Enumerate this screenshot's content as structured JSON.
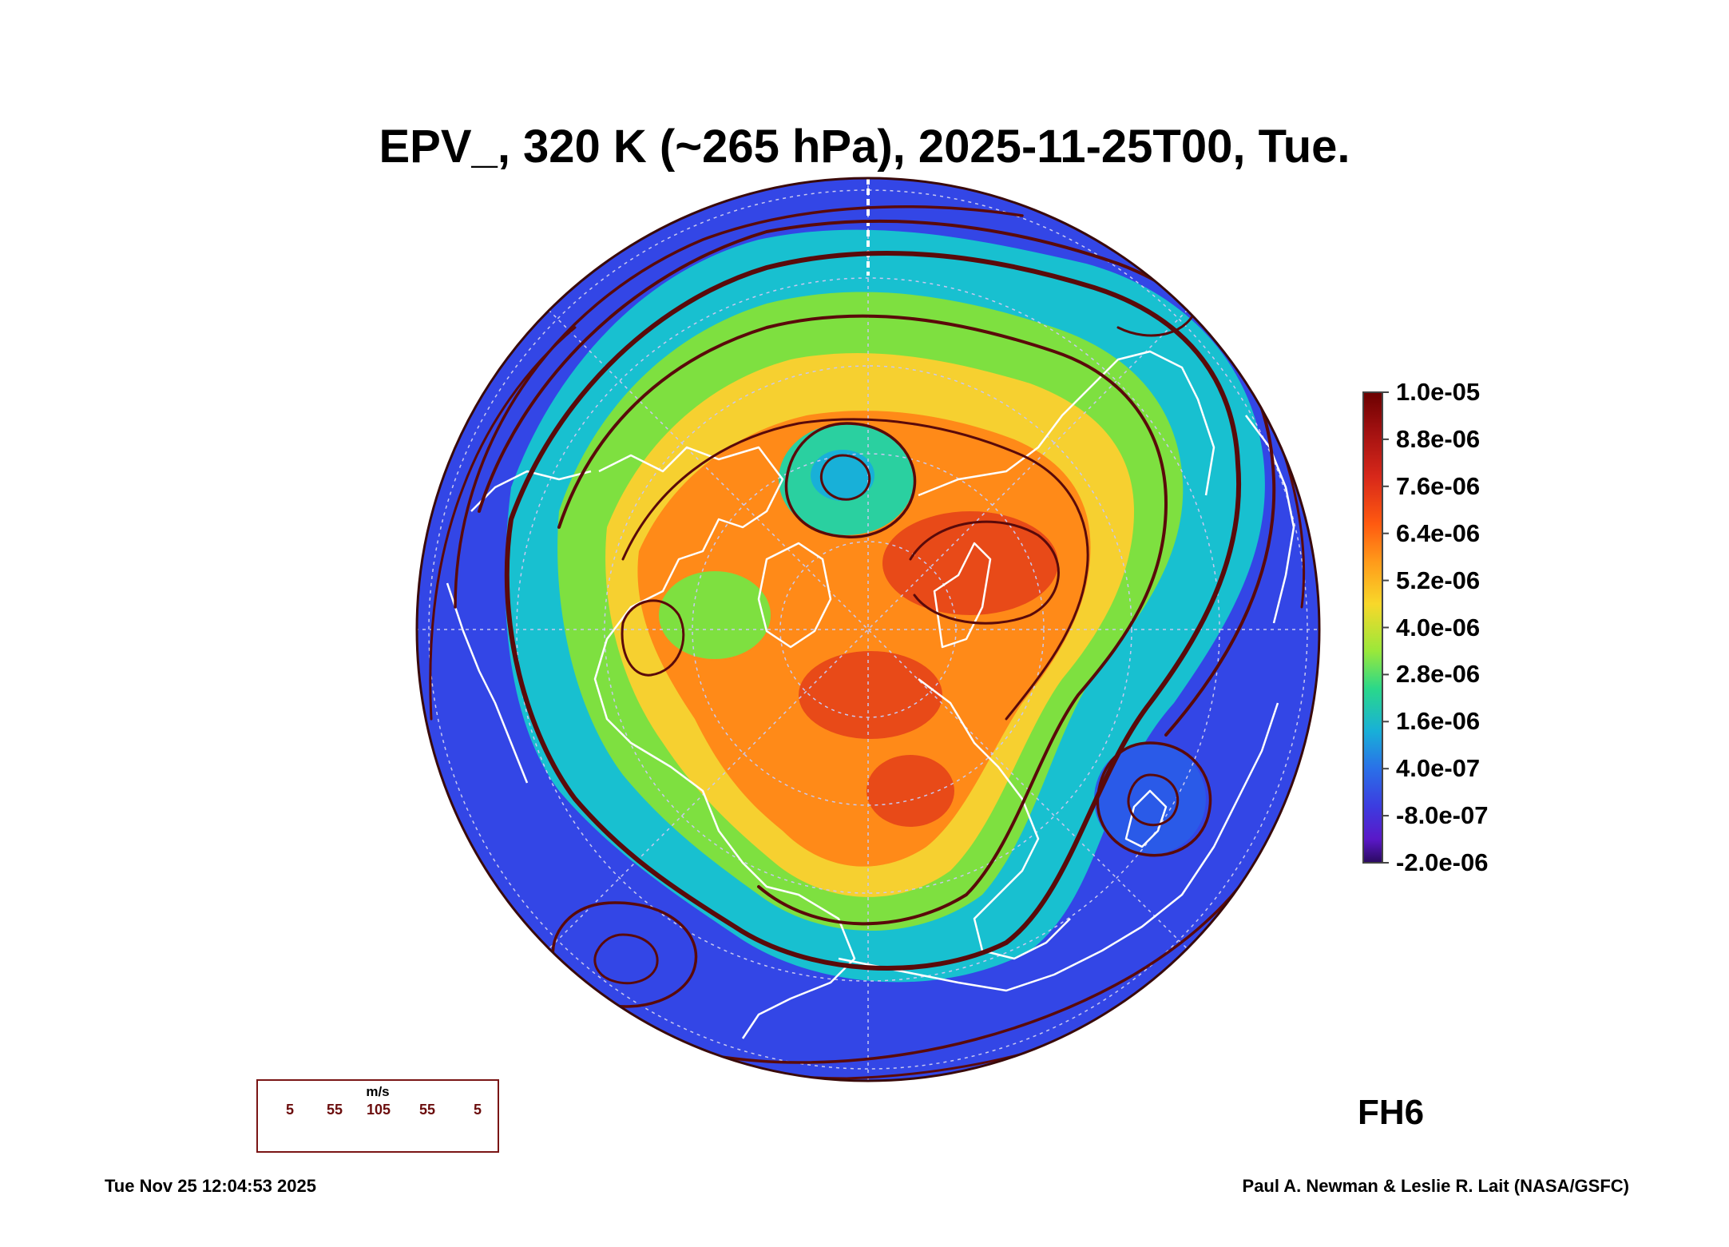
{
  "title": "EPV_, 320 K (~265 hPa), 2025-11-25T00, Tue.",
  "colorbar": {
    "labels": [
      "1.0e-05",
      "8.8e-06",
      "7.6e-06",
      "6.4e-06",
      "5.2e-06",
      "4.0e-06",
      "2.8e-06",
      "1.6e-06",
      "4.0e-07",
      "-8.0e-07",
      "-2.0e-06"
    ],
    "colors": [
      "#6b0000",
      "#a01010",
      "#d8281a",
      "#ff5a10",
      "#ff9a1a",
      "#f8d82a",
      "#9ae83a",
      "#2ad88a",
      "#18b0d8",
      "#2a70e8",
      "#3c3ce0",
      "#5a18c8",
      "#2a0a60"
    ]
  },
  "forecast_hour": "FH6",
  "wind_legend": {
    "units": "m/s",
    "ticks": [
      "5",
      "55",
      "105",
      "55",
      "5"
    ]
  },
  "footer": {
    "timestamp": "Tue Nov 25 12:04:53 2025",
    "credit": "Paul A. Newman & Leslie R. Lait (NASA/GSFC)"
  },
  "map_colors": {
    "ocean_low": "#3346e6",
    "ring_mid": "#18c0d0",
    "ring_green": "#7ee040",
    "yellow": "#f6d030",
    "orange": "#ff8a18",
    "red": "#e84a18",
    "streamline": "#5a0a0a",
    "coast": "#ffffff"
  }
}
